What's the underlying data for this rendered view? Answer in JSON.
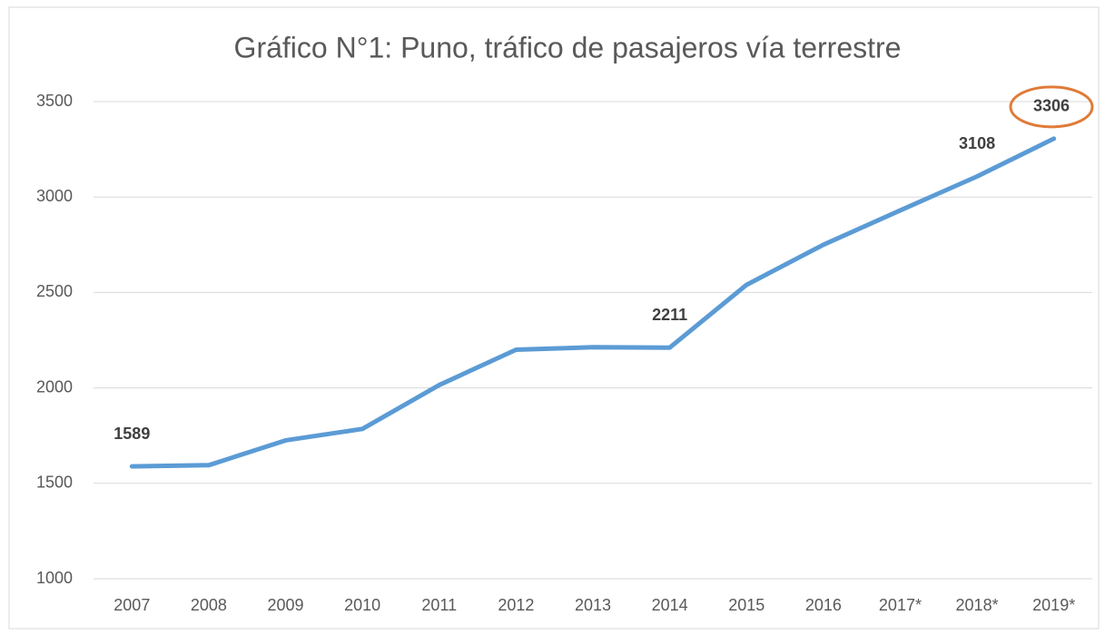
{
  "chart_data": {
    "type": "line",
    "title": "Gráfico N°1: Puno, tráfico de pasajeros vía terrestre",
    "categories": [
      "2007",
      "2008",
      "2009",
      "2010",
      "2011",
      "2012",
      "2013",
      "2014",
      "2015",
      "2016",
      "2017*",
      "2018*",
      "2019*"
    ],
    "series": [
      {
        "name": "Pasajeros",
        "color": "#5b9bd5",
        "values": [
          1589,
          1595,
          1725,
          1785,
          2015,
          2200,
          2213,
          2211,
          2540,
          2750,
          2930,
          3108,
          3306
        ]
      }
    ],
    "labeled_points": [
      0,
      7,
      11,
      12
    ],
    "highlight": {
      "index": 12,
      "color": "#e07b39"
    },
    "ylim": [
      1000,
      3500
    ],
    "yticks": [
      1000,
      1500,
      2000,
      2500,
      3000,
      3500
    ],
    "grid": true
  }
}
